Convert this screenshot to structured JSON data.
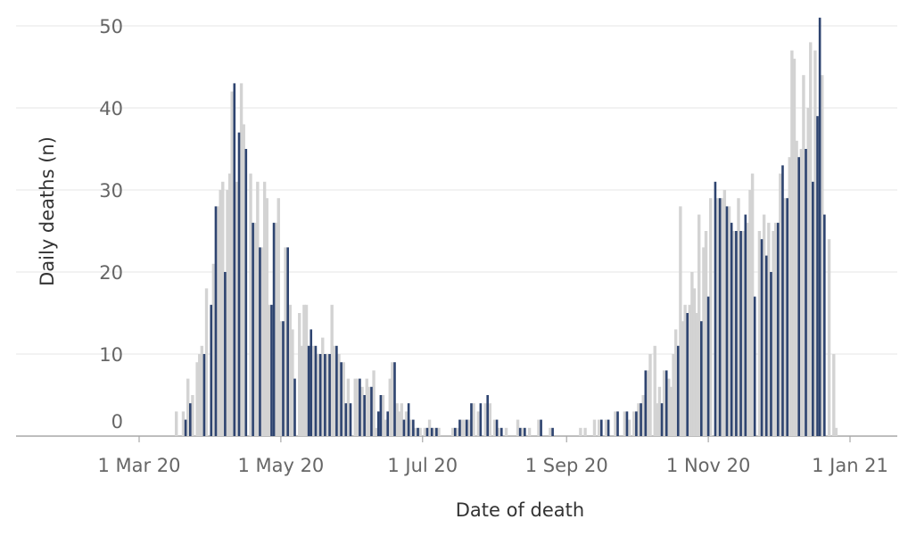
{
  "chart_data": {
    "type": "bar",
    "xlabel": "Date of death",
    "ylabel": "Daily deaths (n)",
    "ylim": [
      0,
      50
    ],
    "y_ticks": [
      {
        "value": 0,
        "label": "0"
      },
      {
        "value": 10,
        "label": "10"
      },
      {
        "value": 20,
        "label": "20"
      },
      {
        "value": 30,
        "label": "30"
      },
      {
        "value": 40,
        "label": "40"
      },
      {
        "value": 50,
        "label": "50"
      }
    ],
    "x_ticks": [
      {
        "date": "2020-03-01",
        "label": "1 Mar 20"
      },
      {
        "date": "2020-05-01",
        "label": "1 May 20"
      },
      {
        "date": "2020-07-01",
        "label": "1 Jul 20"
      },
      {
        "date": "2020-09-01",
        "label": "1 Sep 20"
      },
      {
        "date": "2020-11-01",
        "label": "1 Nov 20"
      },
      {
        "date": "2021-01-01",
        "label": "1 Jan 21"
      }
    ],
    "grid": true,
    "colors": {
      "series_a": "#D3D3D3",
      "series_b": "#2E4470"
    },
    "series": [
      {
        "color": "#D3D3D3",
        "points": [
          [
            "2020-03-17",
            3
          ],
          [
            "2020-03-20",
            3
          ],
          [
            "2020-03-22",
            7
          ],
          [
            "2020-03-24",
            5
          ],
          [
            "2020-03-26",
            9
          ],
          [
            "2020-03-27",
            10
          ],
          [
            "2020-03-28",
            11
          ],
          [
            "2020-03-30",
            18
          ],
          [
            "2020-04-02",
            21
          ],
          [
            "2020-04-04",
            28
          ],
          [
            "2020-04-05",
            30
          ],
          [
            "2020-04-06",
            31
          ],
          [
            "2020-04-08",
            30
          ],
          [
            "2020-04-09",
            32
          ],
          [
            "2020-04-10",
            42
          ],
          [
            "2020-04-12",
            31
          ],
          [
            "2020-04-14",
            43
          ],
          [
            "2020-04-15",
            38
          ],
          [
            "2020-04-18",
            32
          ],
          [
            "2020-04-20",
            26
          ],
          [
            "2020-04-21",
            31
          ],
          [
            "2020-04-23",
            23
          ],
          [
            "2020-04-24",
            31
          ],
          [
            "2020-04-25",
            29
          ],
          [
            "2020-04-26",
            16
          ],
          [
            "2020-04-29",
            26
          ],
          [
            "2020-04-30",
            29
          ],
          [
            "2020-05-01",
            14
          ],
          [
            "2020-05-03",
            23
          ],
          [
            "2020-05-05",
            16
          ],
          [
            "2020-05-06",
            13
          ],
          [
            "2020-05-09",
            15
          ],
          [
            "2020-05-10",
            11
          ],
          [
            "2020-05-11",
            16
          ],
          [
            "2020-05-12",
            16
          ],
          [
            "2020-05-15",
            11
          ],
          [
            "2020-05-17",
            10
          ],
          [
            "2020-05-19",
            12
          ],
          [
            "2020-05-21",
            10
          ],
          [
            "2020-05-23",
            16
          ],
          [
            "2020-05-24",
            11
          ],
          [
            "2020-05-26",
            10
          ],
          [
            "2020-05-28",
            9
          ],
          [
            "2020-05-30",
            7
          ],
          [
            "2020-06-02",
            7
          ],
          [
            "2020-06-03",
            7
          ],
          [
            "2020-06-05",
            6
          ],
          [
            "2020-06-07",
            7
          ],
          [
            "2020-06-08",
            6
          ],
          [
            "2020-06-10",
            8
          ],
          [
            "2020-06-11",
            1
          ],
          [
            "2020-06-14",
            5
          ],
          [
            "2020-06-15",
            2
          ],
          [
            "2020-06-17",
            7
          ],
          [
            "2020-06-18",
            9
          ],
          [
            "2020-06-20",
            4
          ],
          [
            "2020-06-21",
            3
          ],
          [
            "2020-06-22",
            4
          ],
          [
            "2020-06-24",
            3
          ],
          [
            "2020-06-26",
            2
          ],
          [
            "2020-06-28",
            1
          ],
          [
            "2020-06-30",
            1
          ],
          [
            "2020-07-02",
            1
          ],
          [
            "2020-07-04",
            2
          ],
          [
            "2020-07-06",
            1
          ],
          [
            "2020-07-08",
            1
          ],
          [
            "2020-07-14",
            1
          ],
          [
            "2020-07-16",
            1
          ],
          [
            "2020-07-18",
            2
          ],
          [
            "2020-07-19",
            2
          ],
          [
            "2020-07-21",
            2
          ],
          [
            "2020-07-23",
            4
          ],
          [
            "2020-07-25",
            3
          ],
          [
            "2020-07-28",
            4
          ],
          [
            "2020-07-30",
            4
          ],
          [
            "2020-08-01",
            2
          ],
          [
            "2020-08-03",
            1
          ],
          [
            "2020-08-06",
            1
          ],
          [
            "2020-08-11",
            2
          ],
          [
            "2020-08-13",
            1
          ],
          [
            "2020-08-16",
            1
          ],
          [
            "2020-08-20",
            2
          ],
          [
            "2020-08-25",
            1
          ],
          [
            "2020-09-07",
            1
          ],
          [
            "2020-09-09",
            1
          ],
          [
            "2020-09-13",
            2
          ],
          [
            "2020-09-15",
            2
          ],
          [
            "2020-09-18",
            2
          ],
          [
            "2020-09-22",
            3
          ],
          [
            "2020-09-26",
            3
          ],
          [
            "2020-09-28",
            2
          ],
          [
            "2020-09-30",
            3
          ],
          [
            "2020-10-02",
            4
          ],
          [
            "2020-10-04",
            5
          ],
          [
            "2020-10-06",
            8
          ],
          [
            "2020-10-07",
            10
          ],
          [
            "2020-10-09",
            11
          ],
          [
            "2020-10-10",
            4
          ],
          [
            "2020-10-11",
            6
          ],
          [
            "2020-10-13",
            8
          ],
          [
            "2020-10-15",
            7
          ],
          [
            "2020-10-16",
            6
          ],
          [
            "2020-10-17",
            10
          ],
          [
            "2020-10-18",
            13
          ],
          [
            "2020-10-20",
            28
          ],
          [
            "2020-10-21",
            14
          ],
          [
            "2020-10-22",
            16
          ],
          [
            "2020-10-24",
            16
          ],
          [
            "2020-10-25",
            20
          ],
          [
            "2020-10-26",
            18
          ],
          [
            "2020-10-27",
            15
          ],
          [
            "2020-10-28",
            27
          ],
          [
            "2020-10-30",
            23
          ],
          [
            "2020-10-31",
            25
          ],
          [
            "2020-11-02",
            29
          ],
          [
            "2020-11-05",
            29
          ],
          [
            "2020-11-07",
            29
          ],
          [
            "2020-11-08",
            30
          ],
          [
            "2020-11-10",
            28
          ],
          [
            "2020-11-12",
            25
          ],
          [
            "2020-11-14",
            29
          ],
          [
            "2020-11-16",
            25
          ],
          [
            "2020-11-18",
            26
          ],
          [
            "2020-11-19",
            30
          ],
          [
            "2020-11-20",
            32
          ],
          [
            "2020-11-23",
            25
          ],
          [
            "2020-11-25",
            27
          ],
          [
            "2020-11-27",
            26
          ],
          [
            "2020-11-29",
            25
          ],
          [
            "2020-11-30",
            26
          ],
          [
            "2020-12-02",
            32
          ],
          [
            "2020-12-04",
            29
          ],
          [
            "2020-12-06",
            34
          ],
          [
            "2020-12-07",
            47
          ],
          [
            "2020-12-08",
            46
          ],
          [
            "2020-12-09",
            36
          ],
          [
            "2020-12-11",
            35
          ],
          [
            "2020-12-12",
            44
          ],
          [
            "2020-12-14",
            40
          ],
          [
            "2020-12-15",
            48
          ],
          [
            "2020-12-17",
            47
          ],
          [
            "2020-12-20",
            44
          ],
          [
            "2020-12-23",
            24
          ],
          [
            "2020-12-25",
            10
          ],
          [
            "2020-12-26",
            1
          ]
        ]
      },
      {
        "color": "#2E4470",
        "points": [
          [
            "2020-03-21",
            2
          ],
          [
            "2020-03-23",
            4
          ],
          [
            "2020-03-29",
            10
          ],
          [
            "2020-04-01",
            16
          ],
          [
            "2020-04-03",
            28
          ],
          [
            "2020-04-07",
            20
          ],
          [
            "2020-04-11",
            43
          ],
          [
            "2020-04-13",
            37
          ],
          [
            "2020-04-16",
            35
          ],
          [
            "2020-04-19",
            26
          ],
          [
            "2020-04-22",
            23
          ],
          [
            "2020-04-27",
            16
          ],
          [
            "2020-04-28",
            26
          ],
          [
            "2020-05-02",
            14
          ],
          [
            "2020-05-04",
            23
          ],
          [
            "2020-05-07",
            7
          ],
          [
            "2020-05-13",
            11
          ],
          [
            "2020-05-14",
            13
          ],
          [
            "2020-05-16",
            11
          ],
          [
            "2020-05-18",
            10
          ],
          [
            "2020-05-20",
            10
          ],
          [
            "2020-05-22",
            10
          ],
          [
            "2020-05-25",
            11
          ],
          [
            "2020-05-27",
            9
          ],
          [
            "2020-05-29",
            4
          ],
          [
            "2020-05-31",
            4
          ],
          [
            "2020-06-04",
            7
          ],
          [
            "2020-06-06",
            5
          ],
          [
            "2020-06-09",
            6
          ],
          [
            "2020-06-12",
            3
          ],
          [
            "2020-06-13",
            5
          ],
          [
            "2020-06-16",
            3
          ],
          [
            "2020-06-19",
            9
          ],
          [
            "2020-06-23",
            2
          ],
          [
            "2020-06-25",
            4
          ],
          [
            "2020-06-27",
            2
          ],
          [
            "2020-06-29",
            1
          ],
          [
            "2020-07-03",
            1
          ],
          [
            "2020-07-05",
            1
          ],
          [
            "2020-07-07",
            1
          ],
          [
            "2020-07-15",
            1
          ],
          [
            "2020-07-17",
            2
          ],
          [
            "2020-07-20",
            2
          ],
          [
            "2020-07-22",
            4
          ],
          [
            "2020-07-26",
            4
          ],
          [
            "2020-07-29",
            5
          ],
          [
            "2020-08-02",
            2
          ],
          [
            "2020-08-04",
            1
          ],
          [
            "2020-08-12",
            1
          ],
          [
            "2020-08-14",
            1
          ],
          [
            "2020-08-21",
            2
          ],
          [
            "2020-08-26",
            1
          ],
          [
            "2020-09-16",
            2
          ],
          [
            "2020-09-19",
            2
          ],
          [
            "2020-09-23",
            3
          ],
          [
            "2020-09-27",
            3
          ],
          [
            "2020-10-01",
            3
          ],
          [
            "2020-10-03",
            4
          ],
          [
            "2020-10-05",
            8
          ],
          [
            "2020-10-12",
            4
          ],
          [
            "2020-10-14",
            8
          ],
          [
            "2020-10-19",
            11
          ],
          [
            "2020-10-23",
            15
          ],
          [
            "2020-10-29",
            14
          ],
          [
            "2020-11-01",
            17
          ],
          [
            "2020-11-04",
            31
          ],
          [
            "2020-11-06",
            29
          ],
          [
            "2020-11-09",
            28
          ],
          [
            "2020-11-11",
            26
          ],
          [
            "2020-11-13",
            25
          ],
          [
            "2020-11-15",
            25
          ],
          [
            "2020-11-17",
            27
          ],
          [
            "2020-11-21",
            17
          ],
          [
            "2020-11-24",
            24
          ],
          [
            "2020-11-26",
            22
          ],
          [
            "2020-11-28",
            20
          ],
          [
            "2020-12-01",
            26
          ],
          [
            "2020-12-03",
            33
          ],
          [
            "2020-12-05",
            29
          ],
          [
            "2020-12-10",
            34
          ],
          [
            "2020-12-13",
            35
          ],
          [
            "2020-12-16",
            31
          ],
          [
            "2020-12-18",
            39
          ],
          [
            "2020-12-19",
            51
          ],
          [
            "2020-12-21",
            27
          ]
        ]
      }
    ]
  }
}
